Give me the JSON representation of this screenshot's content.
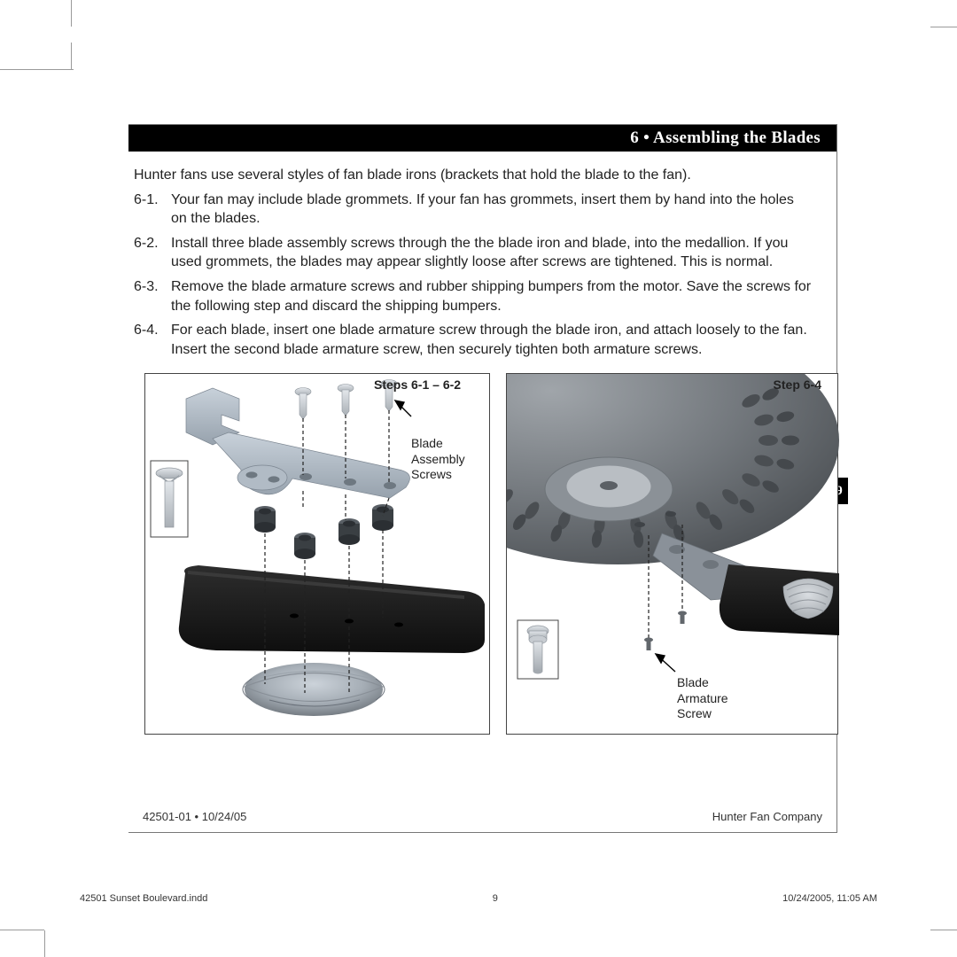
{
  "title_bar": "6 • Assembling the Blades",
  "intro": "Hunter fans use several styles of fan blade irons (brackets that hold the blade to the fan).",
  "steps": [
    {
      "num": "6-1.",
      "text": "Your fan may include blade grommets. If your fan has grommets, insert them by hand into the holes on the blades."
    },
    {
      "num": "6-2.",
      "text": "Install three blade assembly screws through the the blade iron and blade, into the medallion. If you used grommets, the blades may appear slightly loose after screws are tightened. This is normal."
    },
    {
      "num": "6-3.",
      "text": "Remove the blade armature screws and rubber shipping bumpers from the motor. Save the screws for the following step and discard the shipping bumpers."
    },
    {
      "num": "6-4.",
      "text": "For each blade, insert one blade armature screw through the blade iron, and attach loosely to the fan. Insert the second blade armature screw, then securely tighten both armature screws."
    }
  ],
  "page_tab": "9",
  "figA": {
    "title": "Steps 6-1 – 6-2",
    "callout": "Blade\nAssembly\nScrews",
    "palette": {
      "blade_iron": "#b8c3ce",
      "blade_iron_shadow": "#8f9aa6",
      "grommet": "#3a3f43",
      "grommet_rim": "#5a6066",
      "screw": "#d7dce1",
      "screw_shadow": "#aeb4ba",
      "blade": "#141414",
      "blade_top": "#2a2a2a",
      "medallion": "#b9c1c9",
      "medallion_dark": "#757c83",
      "inset_border": "#444"
    }
  },
  "figB": {
    "title": "Step 6-4",
    "callout": "Blade\nArmature\nScrew",
    "palette": {
      "motor_body": "#7c8186",
      "motor_dark": "#5a5f64",
      "motor_darker": "#43474b",
      "hub_ring": "#9aa0a6",
      "hub_center": "#c8cdd2",
      "blade_iron": "#888f96",
      "blade": "#121212",
      "screw": "#c7ccd1",
      "screw_dark": "#6b7075",
      "inset_border": "#444",
      "ridge": "#d3d7db"
    }
  },
  "footer_left": "42501-01 • 10/24/05",
  "footer_right": "Hunter Fan Company",
  "imprint_left": "42501 Sunset Boulevard.indd",
  "imprint_center": "9",
  "imprint_right": "10/24/2005, 11:05 AM"
}
